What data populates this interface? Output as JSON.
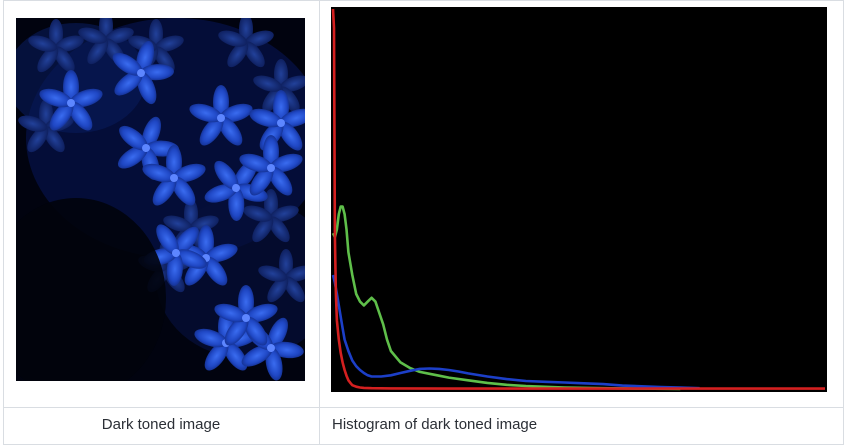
{
  "captions": {
    "left": "Dark toned image",
    "right": "Histogram of dark toned image"
  },
  "photo": {
    "subject_icon": "flower-photo",
    "tint_color": "#1a3fb0"
  },
  "chart_data": {
    "type": "line",
    "title": "",
    "xlabel": "",
    "ylabel": "",
    "xlim": [
      0,
      255
    ],
    "ylim": [
      0,
      100
    ],
    "grid": false,
    "background": "#000000",
    "series": [
      {
        "color": "#d42020",
        "x": [
          0,
          0.5,
          1,
          1.5,
          2,
          3,
          4,
          5,
          6,
          7,
          8,
          9,
          10,
          12,
          14,
          16,
          20,
          30,
          60,
          100,
          150,
          200,
          255
        ],
        "y": [
          100,
          95,
          40,
          25,
          18,
          13,
          9.5,
          7,
          5,
          3.5,
          2.3,
          1.6,
          1.0,
          0.6,
          0.4,
          0.3,
          0.2,
          0.15,
          0.1,
          0.1,
          0.1,
          0.1,
          0.1
        ]
      },
      {
        "color": "#5fbf4a",
        "x": [
          0,
          1,
          2,
          3,
          4,
          5,
          6,
          7,
          8,
          10,
          12,
          14,
          16,
          18,
          20,
          22,
          24,
          26,
          28,
          30,
          35,
          40,
          45,
          50,
          55,
          60,
          70,
          80,
          90,
          100,
          120,
          140,
          160,
          180
        ],
        "y": [
          41,
          40,
          42,
          46,
          48,
          48,
          46,
          42,
          36,
          30,
          25,
          23,
          22,
          23,
          24,
          23,
          20,
          17,
          13,
          10,
          7,
          5.5,
          4.5,
          4,
          3.5,
          3,
          2.3,
          1.6,
          1.1,
          0.8,
          0.4,
          0.2,
          0.1,
          0
        ]
      },
      {
        "color": "#1c3fc8",
        "x": [
          0,
          1,
          2,
          3,
          4,
          5,
          6,
          8,
          10,
          12,
          14,
          16,
          18,
          20,
          25,
          30,
          35,
          40,
          45,
          50,
          55,
          60,
          65,
          70,
          80,
          90,
          100,
          110,
          120,
          130,
          140,
          150,
          160,
          170,
          180,
          190
        ],
        "y": [
          30,
          28,
          25,
          22,
          19,
          16,
          13,
          10,
          7.5,
          6,
          5,
          4.2,
          3.6,
          3.3,
          3.3,
          3.6,
          4.2,
          4.8,
          5.3,
          5.4,
          5.3,
          5,
          4.6,
          4.1,
          3.3,
          2.6,
          2.1,
          1.9,
          1.7,
          1.5,
          1.3,
          0.9,
          0.7,
          0.5,
          0.4,
          0.2
        ]
      }
    ]
  }
}
